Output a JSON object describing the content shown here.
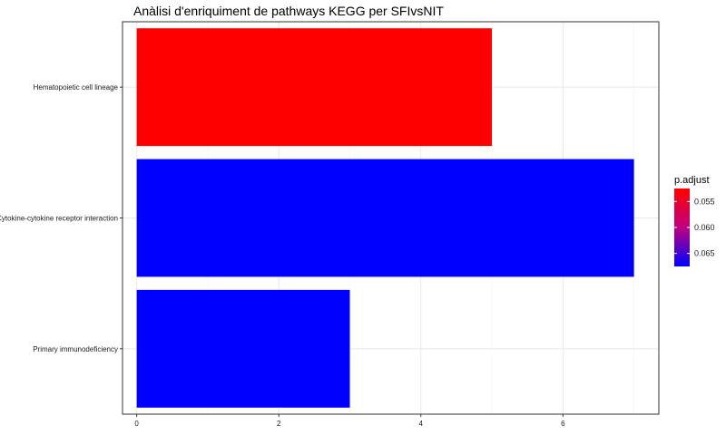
{
  "chart_data": {
    "type": "bar",
    "orientation": "horizontal",
    "title": "Anàlisi d'enriquiment de pathways KEGG per SFIvsNIT",
    "xlabel": "",
    "ylabel": "",
    "categories": [
      "Hematopoietic cell lineage",
      "Cytokine-cytokine receptor interaction",
      "Primary immunodeficiency"
    ],
    "values": [
      5,
      7,
      3
    ],
    "p_adjust": [
      0.0525,
      0.0675,
      0.0675
    ],
    "xlim": [
      -0.2,
      7.35
    ],
    "xticks": [
      "0",
      "2",
      "4",
      "6"
    ],
    "grid": true,
    "legend": {
      "title": "p.adjust",
      "position": "right",
      "labels": [
        "0.055",
        "0.060",
        "0.065"
      ],
      "color_low": "#ff0000",
      "color_high": "#0000ff"
    }
  }
}
